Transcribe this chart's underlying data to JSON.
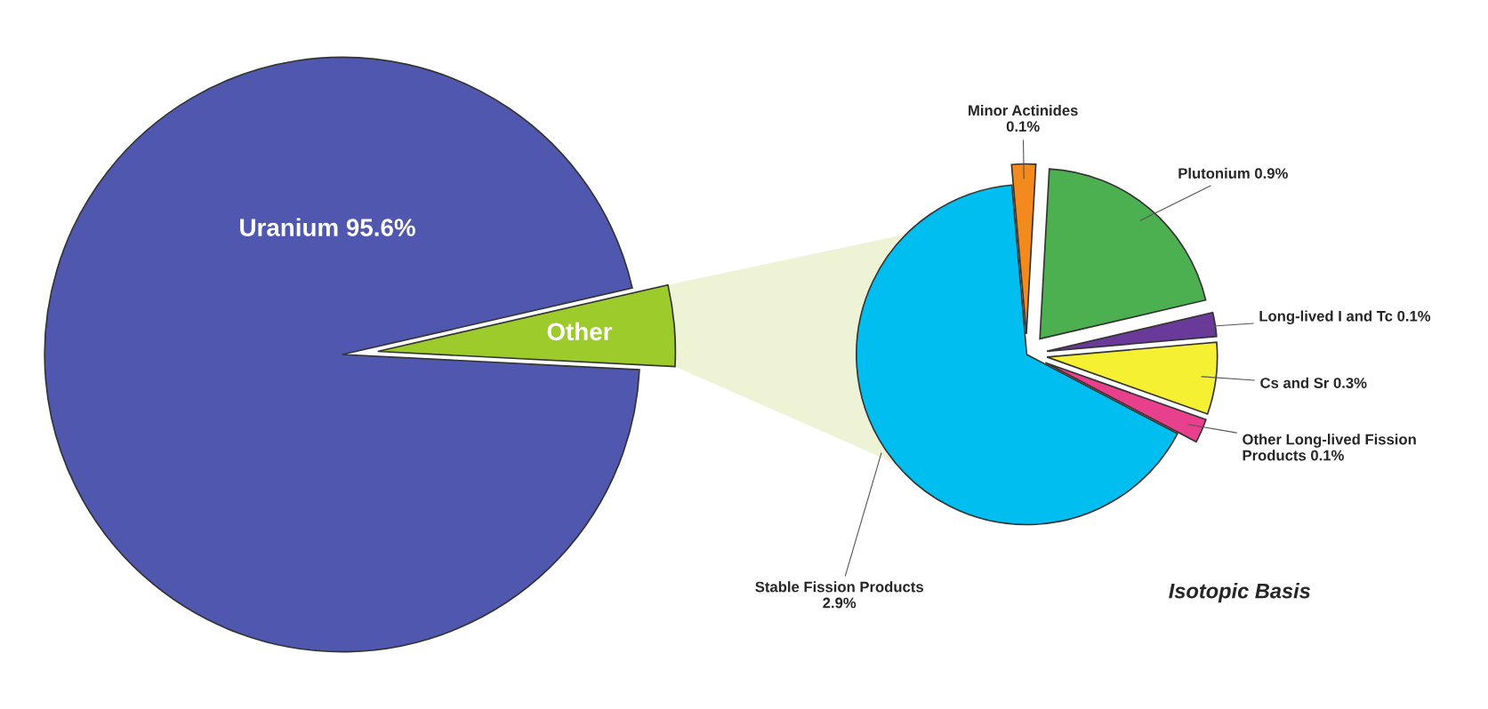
{
  "chart_data": [
    {
      "type": "pie",
      "categories": [
        "Uranium",
        "Other"
      ],
      "values": [
        95.6,
        4.4
      ],
      "value_labels": [
        "95.6%",
        null
      ],
      "colors": [
        "#4f58ae",
        "#9dcb2c"
      ]
    },
    {
      "type": "pie",
      "categories": [
        "Minor Actinides",
        "Plutonium",
        "Long-lived I and Tc",
        "Cs and Sr",
        "Other Long-lived Fission Products",
        "Stable Fission Products"
      ],
      "values": [
        0.1,
        0.9,
        0.1,
        0.3,
        0.1,
        2.9
      ],
      "value_labels": [
        "0.1%",
        "0.9%",
        "0.1%",
        "0.3%",
        "0.1%",
        "2.9%"
      ],
      "colors": [
        "#f28a1e",
        "#4cb050",
        "#6a3a9a",
        "#f5f032",
        "#e8408c",
        "#00bff0"
      ],
      "annotations": [
        "Isotopic Basis"
      ]
    }
  ]
}
